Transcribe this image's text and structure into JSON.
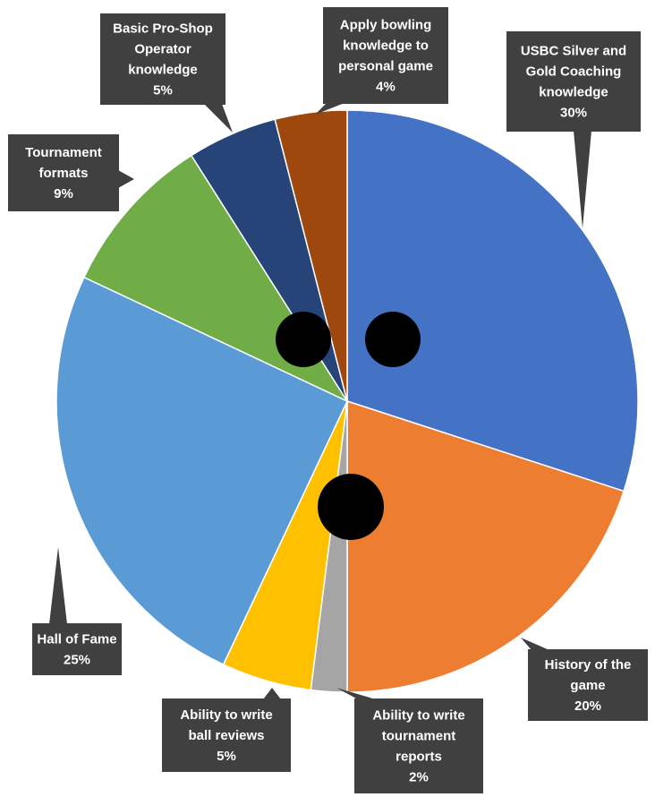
{
  "chart_data": {
    "type": "pie",
    "title": "",
    "start": "12 o'clock",
    "direction": "clockwise",
    "legend": "none",
    "data_labels": "callouts outside pie with category name and percent",
    "slices": [
      {
        "label_lines": [
          "USBC Silver and",
          "Gold Coaching",
          "knowledge"
        ],
        "percent_text": "30%",
        "value": 30,
        "color": "#4472C4"
      },
      {
        "label_lines": [
          "History of the",
          "game"
        ],
        "percent_text": "20%",
        "value": 20,
        "color": "#ED7D31"
      },
      {
        "label_lines": [
          "Ability to write",
          "tournament",
          "reports"
        ],
        "percent_text": "2%",
        "value": 2,
        "color": "#A5A5A5"
      },
      {
        "label_lines": [
          "Ability to write",
          "ball reviews"
        ],
        "percent_text": "5%",
        "value": 5,
        "color": "#FFC000"
      },
      {
        "label_lines": [
          "Hall of Fame"
        ],
        "percent_text": "25%",
        "value": 25,
        "color": "#5B9BD5"
      },
      {
        "label_lines": [
          "Tournament",
          "formats"
        ],
        "percent_text": "9%",
        "value": 9,
        "color": "#70AD47"
      },
      {
        "label_lines": [
          "Basic Pro-Shop",
          "Operator",
          "knowledge"
        ],
        "percent_text": "5%",
        "value": 5,
        "color": "#264478"
      },
      {
        "label_lines": [
          "Apply bowling",
          "knowledge to",
          "personal game"
        ],
        "percent_text": "4%",
        "value": 4,
        "color": "#9E480E"
      }
    ],
    "decoration": "three black finger holes drawn on the pie (bowling ball)",
    "callout_color": "#404040"
  }
}
